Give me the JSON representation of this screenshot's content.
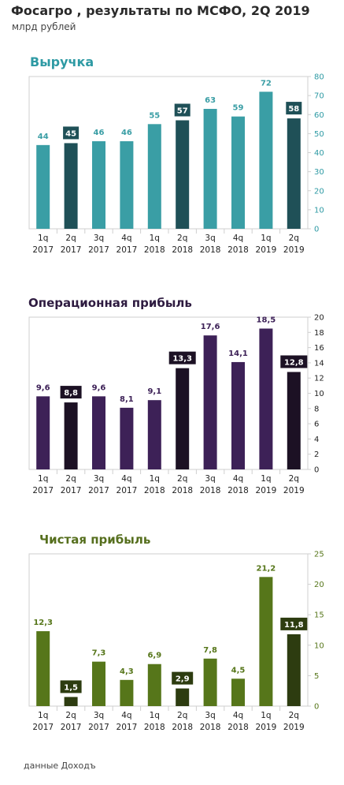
{
  "header": {
    "title": "Фосагро , результаты по МСФО, 2Q 2019",
    "subtitle": "млрд рублей"
  },
  "footer": {
    "source": "данные Доходъ"
  },
  "colors": {
    "revenue_light": "#3a9ea5",
    "revenue_dark": "#1f5057",
    "revenue_title": "#2e9aa4",
    "op_light": "#3d2157",
    "op_dark": "#1c1124",
    "op_title": "#2e1b40",
    "net_light": "#56761a",
    "net_dark": "#2d3c10",
    "net_title": "#566f1e"
  },
  "chart_data": [
    {
      "type": "bar",
      "title": "Выручка",
      "categories": [
        "1q 2017",
        "2q 2017",
        "3q 2017",
        "4q 2017",
        "1q 2018",
        "2q 2018",
        "3q 2018",
        "4q 2018",
        "1q 2019",
        "2q 2019"
      ],
      "values": [
        44,
        45,
        46,
        46,
        55,
        57,
        63,
        59,
        72,
        58
      ],
      "labels": [
        "44",
        "45",
        "46",
        "46",
        "55",
        "57",
        "63",
        "59",
        "72",
        "58"
      ],
      "highlighted": [
        false,
        true,
        false,
        false,
        false,
        true,
        false,
        false,
        false,
        true
      ],
      "yticks": [
        "0",
        "10",
        "20",
        "30",
        "40",
        "50",
        "60",
        "70",
        "80"
      ],
      "ylim": [
        0,
        80
      ],
      "yaxis_side": "right",
      "grid": false
    },
    {
      "type": "bar",
      "title": "Операционная прибыль",
      "categories": [
        "1q 2017",
        "2q 2017",
        "3q 2017",
        "4q 2017",
        "1q 2018",
        "2q 2018",
        "3q 2018",
        "4q 2018",
        "1q 2019",
        "2q 2019"
      ],
      "values": [
        9.6,
        8.8,
        9.6,
        8.1,
        9.1,
        13.3,
        17.6,
        14.1,
        18.5,
        12.8
      ],
      "labels": [
        "9,6",
        "8,8",
        "9,6",
        "8,1",
        "9,1",
        "13,3",
        "17,6",
        "14,1",
        "18,5",
        "12,8"
      ],
      "highlighted": [
        false,
        true,
        false,
        false,
        false,
        true,
        false,
        false,
        false,
        true
      ],
      "yticks": [
        "0",
        "2",
        "4",
        "6",
        "8",
        "10",
        "12",
        "14",
        "16",
        "18",
        "20"
      ],
      "ylim": [
        0,
        20
      ],
      "yaxis_side": "right",
      "grid": false
    },
    {
      "type": "bar",
      "title": "Чистая прибыль",
      "categories": [
        "1q 2017",
        "2q 2017",
        "3q 2017",
        "4q 2017",
        "1q 2018",
        "2q 2018",
        "3q 2018",
        "4q 2018",
        "1q 2019",
        "2q 2019"
      ],
      "values": [
        12.3,
        1.5,
        7.3,
        4.3,
        6.9,
        2.9,
        7.8,
        4.5,
        21.2,
        11.8
      ],
      "labels": [
        "12,3",
        "1,5",
        "7,3",
        "4,3",
        "6,9",
        "2,9",
        "7,8",
        "4,5",
        "21,2",
        "11,8"
      ],
      "highlighted": [
        false,
        true,
        false,
        false,
        false,
        true,
        false,
        false,
        false,
        true
      ],
      "yticks": [
        "0",
        "5",
        "10",
        "15",
        "20",
        "25"
      ],
      "ylim": [
        0,
        25
      ],
      "yaxis_side": "right",
      "grid": false
    }
  ]
}
